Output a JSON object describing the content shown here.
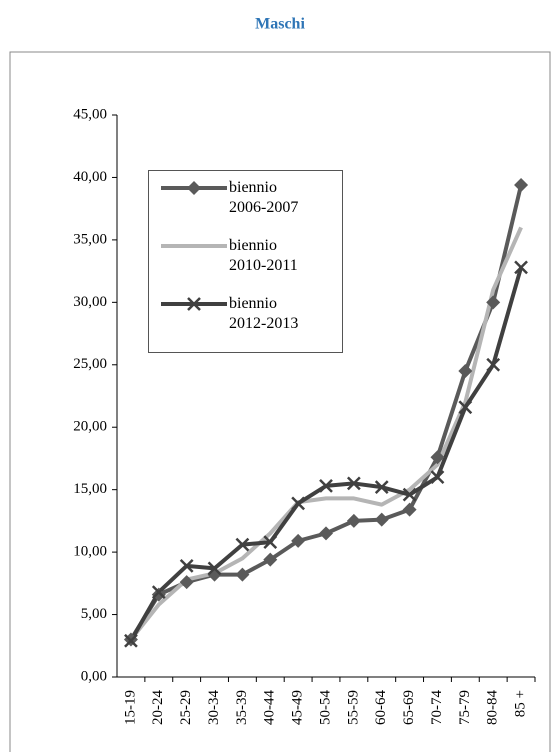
{
  "chart_data": {
    "type": "line",
    "title": "Maschi",
    "categories": [
      "15-19",
      "20-24",
      "25-29",
      "30-34",
      "35-39",
      "40-44",
      "45-49",
      "50-54",
      "55-59",
      "60-64",
      "65-69",
      "70-74",
      "75-79",
      "80-84",
      "85 +"
    ],
    "series": [
      {
        "name": "biennio 2006-2007",
        "color": "#5a5a5a",
        "marker": "diamond",
        "values": [
          3.0,
          6.6,
          7.6,
          8.2,
          8.2,
          9.4,
          10.9,
          11.5,
          12.5,
          12.6,
          13.4,
          17.6,
          24.5,
          30.0,
          39.4
        ]
      },
      {
        "name": "biennio 2010-2011",
        "color": "#b5b5b5",
        "marker": "none",
        "values": [
          3.0,
          5.8,
          7.8,
          8.3,
          9.5,
          11.5,
          14.0,
          14.3,
          14.3,
          13.8,
          15.0,
          17.0,
          22.0,
          31.0,
          36.0
        ]
      },
      {
        "name": "biennio 2012-2013",
        "color": "#404040",
        "marker": "x",
        "values": [
          2.9,
          6.8,
          8.9,
          8.7,
          10.6,
          10.8,
          13.9,
          15.3,
          15.5,
          15.2,
          14.6,
          16.0,
          21.6,
          25.0,
          32.8
        ]
      }
    ],
    "ylim": [
      0,
      45
    ],
    "yticks": [
      {
        "value": 0,
        "label": "0,00"
      },
      {
        "value": 5,
        "label": "5,00"
      },
      {
        "value": 10,
        "label": "10,00"
      },
      {
        "value": 15,
        "label": "15,00"
      },
      {
        "value": 20,
        "label": "20,00"
      },
      {
        "value": 25,
        "label": "25,00"
      },
      {
        "value": 30,
        "label": "30,00"
      },
      {
        "value": 35,
        "label": "35,00"
      },
      {
        "value": 40,
        "label": "40,00"
      },
      {
        "value": 45,
        "label": "45,00"
      }
    ],
    "grid": false,
    "legend": "upper-left"
  }
}
